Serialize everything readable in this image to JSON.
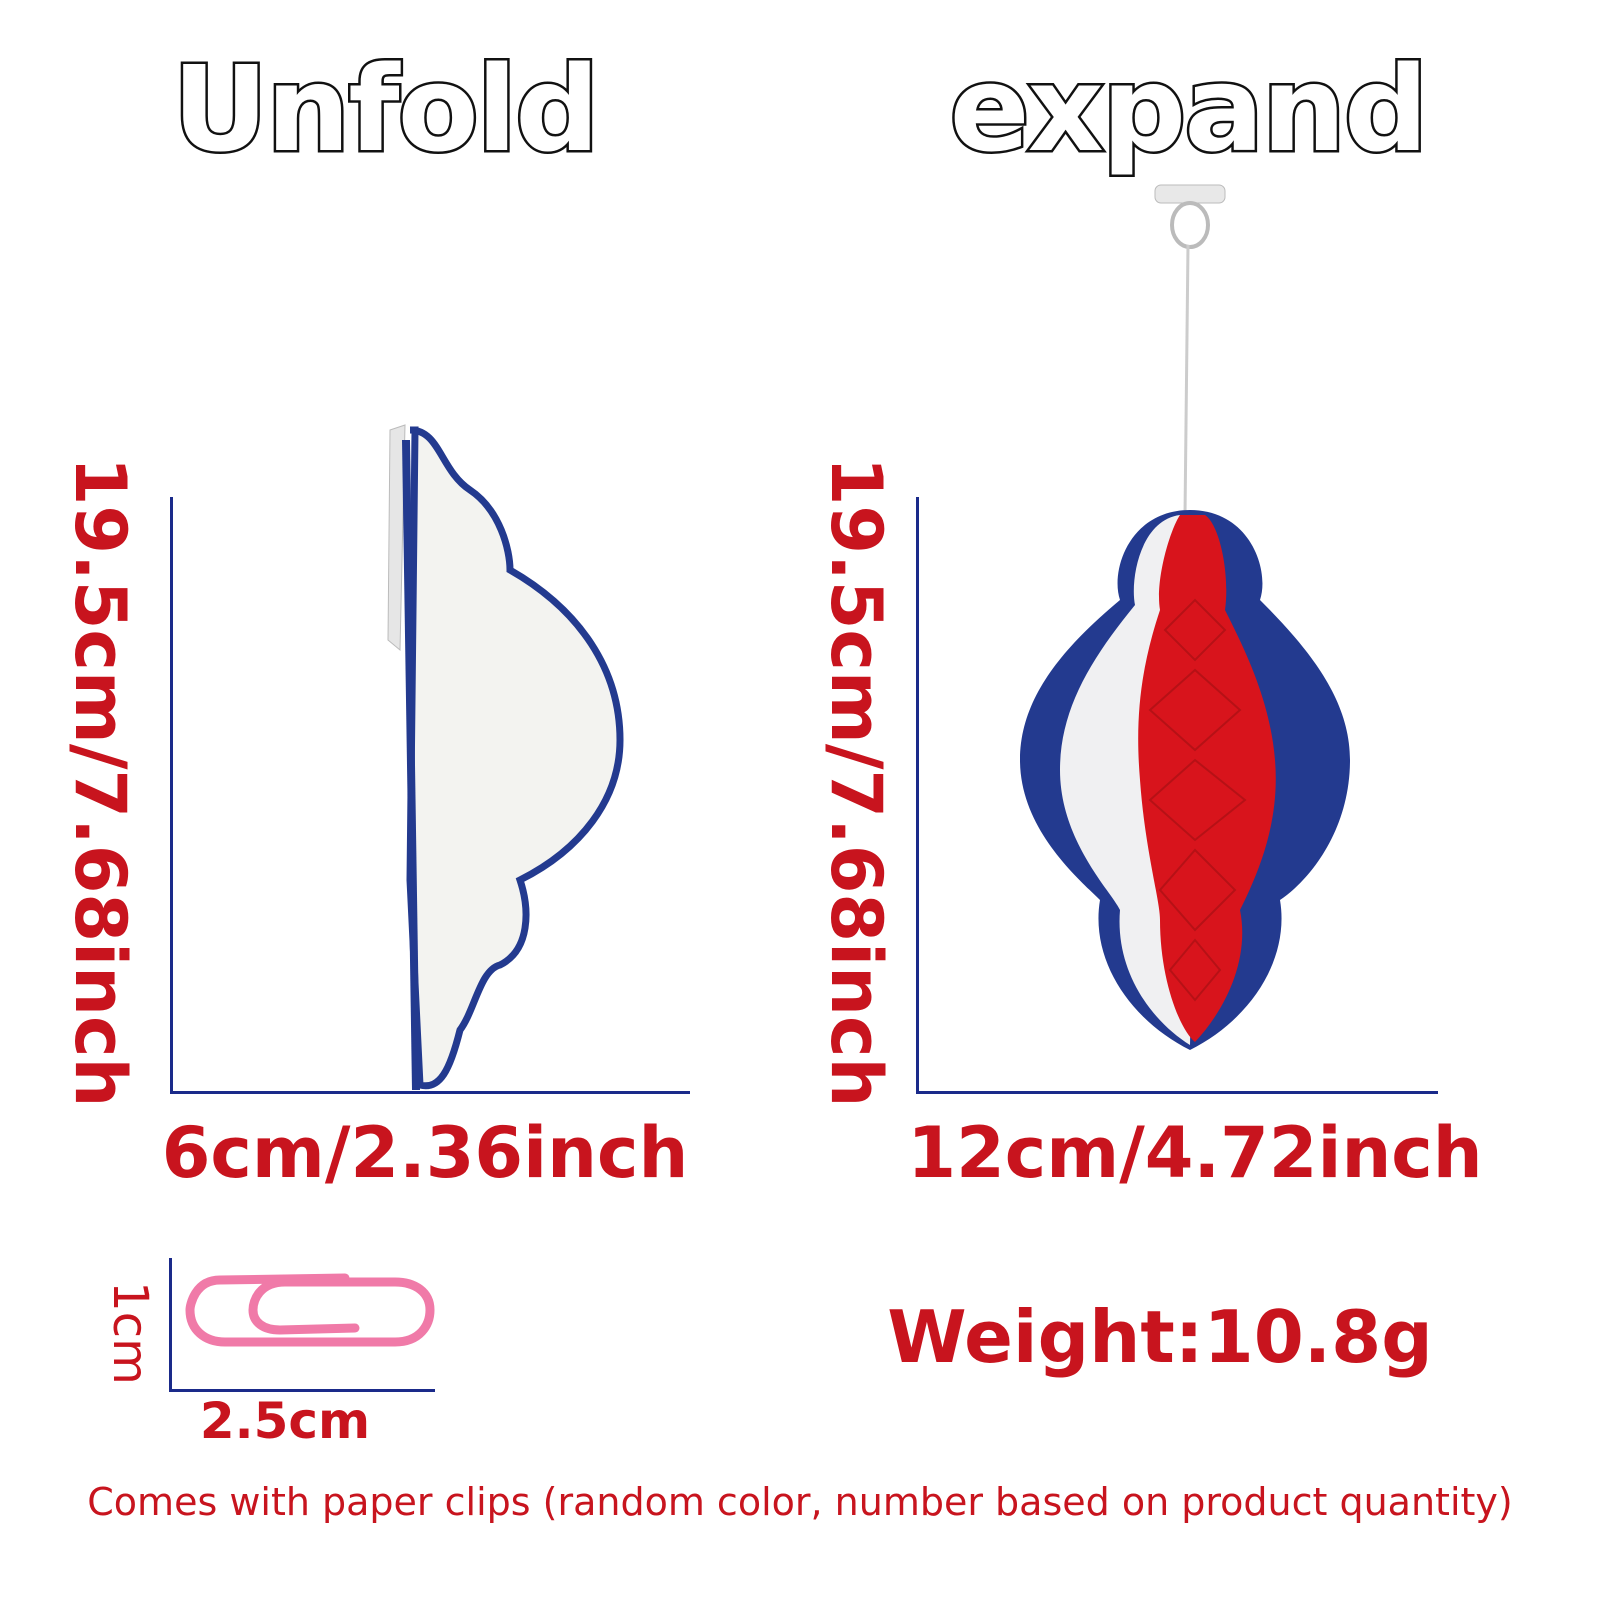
{
  "unfold_panel": {
    "title": "Unfold",
    "height_label": "19.5cm/7.68inch",
    "width_label": "6cm/2.36inch"
  },
  "expand_panel": {
    "title": "expand",
    "height_label": "19.5cm/7.68inch",
    "width_label": "12cm/4.72inch"
  },
  "paper_clip": {
    "height_label": "1cm",
    "width_label": "2.5cm",
    "color": "#f07aa8"
  },
  "weight": "Weight:10.8g",
  "note": "Comes with paper clips (random color, number based on product quantity)",
  "colors": {
    "label_red": "#c8141e",
    "axis_blue": "#1a2a8a",
    "decor_red": "#d8141c",
    "decor_blue": "#233a8f",
    "decor_white": "#f2f2f2"
  }
}
